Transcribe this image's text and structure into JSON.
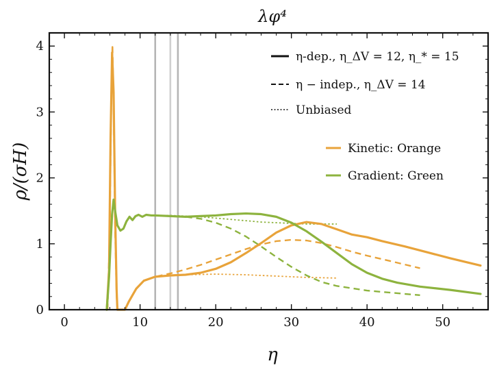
{
  "chart_data": {
    "type": "line",
    "title": "λφ⁴",
    "xlabel": "η",
    "ylabel": "ρ/(σH)",
    "xlim": [
      -2,
      56
    ],
    "ylim": [
      0,
      4.2
    ],
    "x_ticks": [
      0,
      10,
      20,
      30,
      40,
      50
    ],
    "y_ticks": [
      0,
      1,
      2,
      3,
      4
    ],
    "grid": false,
    "legend_placement": "top-right",
    "vertical_lines": [
      {
        "x": 12,
        "color": "#b5b5b5"
      },
      {
        "x": 14,
        "color": "#cfcfcf"
      },
      {
        "x": 15,
        "color": "#b5b5b5"
      }
    ],
    "legend_styles": [
      {
        "label": "η-dep., η_ΔV = 12, η_* = 15",
        "line_style": "solid"
      },
      {
        "label": "η − indep., η_ΔV = 14",
        "line_style": "dashed"
      },
      {
        "label": "Unbiased",
        "line_style": "dotted"
      }
    ],
    "legend_colors": [
      {
        "label": "Kinetic: Orange",
        "color": "#e8a33a"
      },
      {
        "label": "Gradient: Green",
        "color": "#8db33e"
      }
    ],
    "series": [
      {
        "name": "Kinetic η-dep.",
        "color": "#e8a33a",
        "style": "solid",
        "points": [
          [
            5.6,
            0
          ],
          [
            5.9,
            0.6
          ],
          [
            6.1,
            2.6
          ],
          [
            6.3,
            3.9
          ],
          [
            6.5,
            3.3
          ],
          [
            6.7,
            1.5
          ],
          [
            6.9,
            0.3
          ],
          [
            7.0,
            0
          ],
          [
            8.0,
            0
          ],
          [
            8.5,
            0.12
          ],
          [
            9.5,
            0.32
          ],
          [
            10.5,
            0.44
          ],
          [
            12,
            0.5
          ],
          [
            14,
            0.52
          ],
          [
            16,
            0.53
          ],
          [
            18,
            0.56
          ],
          [
            20,
            0.62
          ],
          [
            22,
            0.72
          ],
          [
            24,
            0.86
          ],
          [
            26,
            1.01
          ],
          [
            28,
            1.17
          ],
          [
            30,
            1.28
          ],
          [
            32,
            1.33
          ],
          [
            34,
            1.3
          ],
          [
            36,
            1.22
          ],
          [
            38,
            1.14
          ],
          [
            40,
            1.1
          ],
          [
            42,
            1.04
          ],
          [
            45,
            0.96
          ],
          [
            48,
            0.87
          ],
          [
            51,
            0.78
          ],
          [
            55,
            0.67
          ]
        ]
      },
      {
        "name": "Kinetic η-indep.",
        "color": "#e8a33a",
        "style": "dashed",
        "points": [
          [
            5.7,
            0
          ],
          [
            6.0,
            1.2
          ],
          [
            6.2,
            3.3
          ],
          [
            6.35,
            4.02
          ],
          [
            6.5,
            3.1
          ],
          [
            6.7,
            1.2
          ],
          [
            6.9,
            0.2
          ],
          [
            7.0,
            0
          ],
          [
            8.0,
            0
          ],
          [
            8.5,
            0.12
          ],
          [
            9.5,
            0.32
          ],
          [
            10.5,
            0.44
          ],
          [
            12,
            0.5
          ],
          [
            14,
            0.55
          ],
          [
            16,
            0.61
          ],
          [
            18,
            0.68
          ],
          [
            20,
            0.76
          ],
          [
            22,
            0.84
          ],
          [
            24,
            0.92
          ],
          [
            26,
            0.99
          ],
          [
            28,
            1.04
          ],
          [
            30,
            1.06
          ],
          [
            32,
            1.05
          ],
          [
            34,
            1.01
          ],
          [
            36,
            0.95
          ],
          [
            38,
            0.88
          ],
          [
            40,
            0.82
          ],
          [
            43,
            0.74
          ],
          [
            47,
            0.63
          ]
        ]
      },
      {
        "name": "Kinetic unbiased",
        "color": "#e8a33a",
        "style": "dotted",
        "points": [
          [
            5.7,
            0
          ],
          [
            6.0,
            1.2
          ],
          [
            6.2,
            3.3
          ],
          [
            6.35,
            4.0
          ],
          [
            6.5,
            3.1
          ],
          [
            6.7,
            1.2
          ],
          [
            6.9,
            0.2
          ],
          [
            7.0,
            0
          ],
          [
            8.0,
            0
          ],
          [
            8.5,
            0.12
          ],
          [
            9.5,
            0.32
          ],
          [
            10.5,
            0.44
          ],
          [
            12,
            0.5
          ],
          [
            14,
            0.52
          ],
          [
            16,
            0.53
          ],
          [
            20,
            0.54
          ],
          [
            24,
            0.53
          ],
          [
            28,
            0.51
          ],
          [
            32,
            0.49
          ],
          [
            36,
            0.48
          ]
        ]
      },
      {
        "name": "Gradient η-dep.",
        "color": "#8db33e",
        "style": "solid",
        "points": [
          [
            5.6,
            0
          ],
          [
            5.9,
            0.5
          ],
          [
            6.1,
            1.0
          ],
          [
            6.3,
            1.45
          ],
          [
            6.5,
            1.67
          ],
          [
            6.7,
            1.5
          ],
          [
            7.0,
            1.28
          ],
          [
            7.4,
            1.2
          ],
          [
            7.8,
            1.23
          ],
          [
            8.2,
            1.34
          ],
          [
            8.6,
            1.41
          ],
          [
            9.0,
            1.36
          ],
          [
            9.4,
            1.42
          ],
          [
            9.8,
            1.44
          ],
          [
            10.3,
            1.41
          ],
          [
            10.8,
            1.44
          ],
          [
            11.5,
            1.43
          ],
          [
            12,
            1.43
          ],
          [
            14,
            1.42
          ],
          [
            16,
            1.41
          ],
          [
            18,
            1.42
          ],
          [
            20,
            1.43
          ],
          [
            22,
            1.45
          ],
          [
            24,
            1.46
          ],
          [
            26,
            1.45
          ],
          [
            28,
            1.41
          ],
          [
            30,
            1.32
          ],
          [
            32,
            1.19
          ],
          [
            34,
            1.03
          ],
          [
            36,
            0.86
          ],
          [
            38,
            0.69
          ],
          [
            40,
            0.56
          ],
          [
            42,
            0.47
          ],
          [
            44,
            0.41
          ],
          [
            47,
            0.35
          ],
          [
            51,
            0.3
          ],
          [
            55,
            0.24
          ]
        ]
      },
      {
        "name": "Gradient η-indep.",
        "color": "#8db33e",
        "style": "dashed",
        "points": [
          [
            12,
            1.43
          ],
          [
            14,
            1.42
          ],
          [
            16,
            1.41
          ],
          [
            18,
            1.38
          ],
          [
            20,
            1.32
          ],
          [
            22,
            1.23
          ],
          [
            24,
            1.11
          ],
          [
            26,
            0.96
          ],
          [
            28,
            0.8
          ],
          [
            30,
            0.65
          ],
          [
            32,
            0.52
          ],
          [
            34,
            0.42
          ],
          [
            36,
            0.36
          ],
          [
            40,
            0.29
          ],
          [
            44,
            0.25
          ],
          [
            47,
            0.22
          ]
        ]
      },
      {
        "name": "Gradient unbiased",
        "color": "#8db33e",
        "style": "dotted",
        "points": [
          [
            12,
            1.43
          ],
          [
            14,
            1.43
          ],
          [
            16,
            1.42
          ],
          [
            18,
            1.41
          ],
          [
            20,
            1.39
          ],
          [
            22,
            1.37
          ],
          [
            24,
            1.35
          ],
          [
            26,
            1.33
          ],
          [
            28,
            1.32
          ],
          [
            30,
            1.31
          ],
          [
            32,
            1.3
          ],
          [
            34,
            1.3
          ],
          [
            36,
            1.3
          ]
        ]
      }
    ]
  }
}
